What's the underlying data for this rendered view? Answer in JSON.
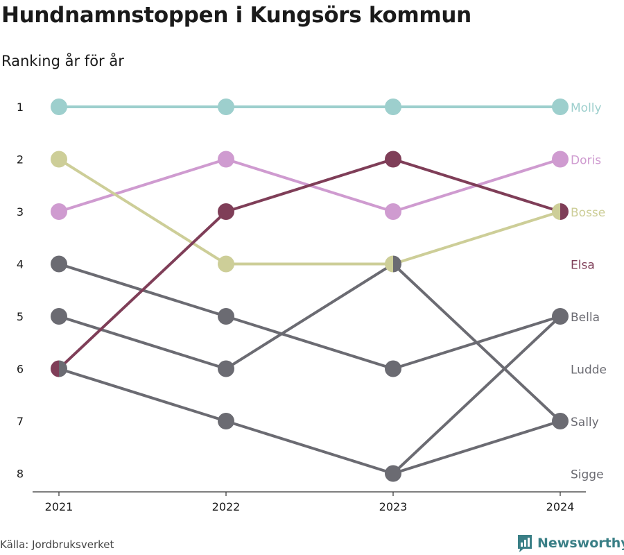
{
  "title": "Hundnamnstoppen i Kungsörs kommun",
  "subtitle": "Ranking år för år",
  "source": "Källa: Jordbruksverket",
  "brand": "Newsworthy",
  "colors": {
    "Molly": "#9dcfcd",
    "Doris": "#cf9bd0",
    "Bosse": "#cdce98",
    "Elsa": "#7f3e58",
    "gray": "#6b6b72",
    "axis": "#333333",
    "brand": "#3a7f86"
  },
  "chart_data": {
    "type": "line",
    "x": [
      "2021",
      "2022",
      "2023",
      "2024"
    ],
    "y_ticks": [
      "1",
      "2",
      "3",
      "4",
      "5",
      "6",
      "7",
      "8"
    ],
    "y_reversed": true,
    "ylim": [
      1,
      8
    ],
    "grid": false,
    "series": [
      {
        "name": "Molly",
        "values": [
          1,
          1,
          1,
          1
        ],
        "color_key": "Molly"
      },
      {
        "name": "Doris",
        "values": [
          3,
          2,
          3,
          2
        ],
        "color_key": "Doris"
      },
      {
        "name": "Bosse",
        "values": [
          2,
          4,
          4,
          3
        ],
        "color_key": "Bosse"
      },
      {
        "name": "Elsa",
        "values": [
          6,
          3,
          2,
          3
        ],
        "color_key": "Elsa"
      },
      {
        "name": "Bella",
        "values": [
          5,
          6,
          4,
          7
        ],
        "color_key": "gray"
      },
      {
        "name": "Ludde",
        "values": [
          4,
          5,
          6,
          5
        ],
        "color_key": "gray"
      },
      {
        "name": "Sally",
        "values": [
          6,
          7,
          8,
          5
        ],
        "color_key": "gray"
      },
      {
        "name": "Sigge",
        "values": [
          null,
          null,
          8,
          7
        ],
        "color_key": "gray"
      }
    ],
    "end_labels": [
      {
        "text": "Molly",
        "rank": 1,
        "color_key": "Molly"
      },
      {
        "text": "Doris",
        "rank": 2,
        "color_key": "Doris"
      },
      {
        "text": "Bosse",
        "rank": 3,
        "color_key": "Bosse"
      },
      {
        "text": "Elsa",
        "rank": 4,
        "color_key": "Elsa"
      },
      {
        "text": "Bella",
        "rank": 5,
        "color_key": "gray"
      },
      {
        "text": "Ludde",
        "rank": 6,
        "color_key": "gray"
      },
      {
        "text": "Sally",
        "rank": 7,
        "color_key": "gray"
      },
      {
        "text": "Sigge",
        "rank": 8,
        "color_key": "gray"
      }
    ]
  }
}
